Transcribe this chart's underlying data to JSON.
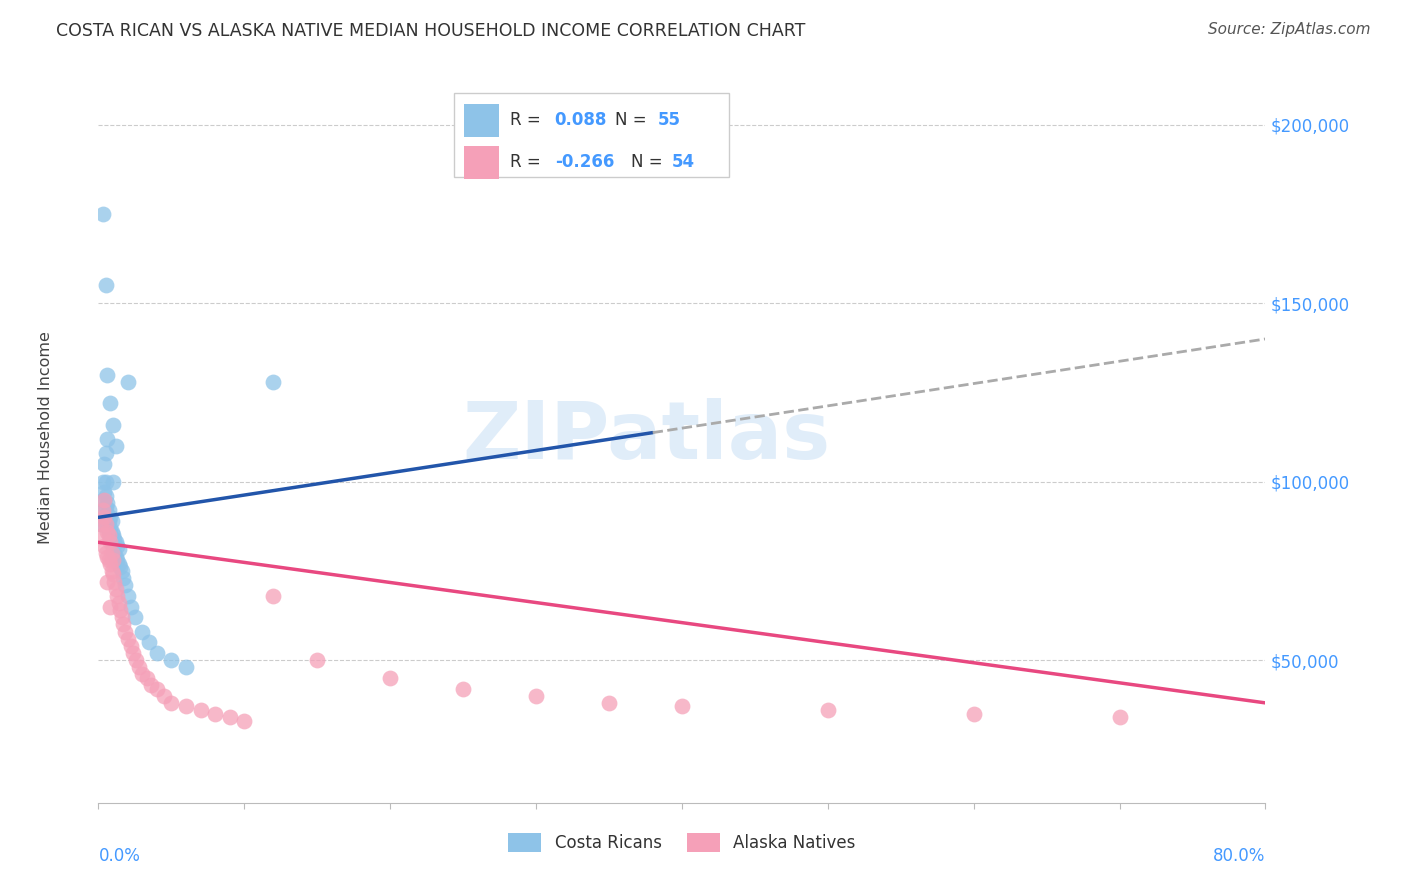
{
  "title": "COSTA RICAN VS ALASKA NATIVE MEDIAN HOUSEHOLD INCOME CORRELATION CHART",
  "source": "Source: ZipAtlas.com",
  "ylabel": "Median Household Income",
  "series1_label": "Costa Ricans",
  "series2_label": "Alaska Natives",
  "series1_color": "#8ec3e8",
  "series2_color": "#f5a0b8",
  "line1_color": "#2255aa",
  "line1_dash_color": "#aaaaaa",
  "line2_color": "#e84880",
  "watermark": "ZIPatlas",
  "background_color": "#ffffff",
  "xlim": [
    0.0,
    0.8
  ],
  "ylim": [
    10000,
    215000
  ],
  "ytick_values": [
    50000,
    100000,
    150000,
    200000
  ],
  "ytick_labels": [
    "$50,000",
    "$100,000",
    "$150,000",
    "$200,000"
  ],
  "legend_r1": "R =  0.088",
  "legend_n1": "N = 55",
  "legend_r2": "R = -0.266",
  "legend_n2": "N = 54",
  "cr_x": [
    0.002,
    0.003,
    0.003,
    0.004,
    0.004,
    0.004,
    0.005,
    0.005,
    0.005,
    0.005,
    0.005,
    0.006,
    0.006,
    0.006,
    0.006,
    0.007,
    0.007,
    0.007,
    0.008,
    0.008,
    0.008,
    0.009,
    0.009,
    0.009,
    0.01,
    0.01,
    0.01,
    0.011,
    0.011,
    0.012,
    0.012,
    0.013,
    0.013,
    0.014,
    0.014,
    0.015,
    0.016,
    0.017,
    0.018,
    0.02,
    0.022,
    0.025,
    0.03,
    0.035,
    0.04,
    0.05,
    0.06,
    0.003,
    0.005,
    0.006,
    0.008,
    0.01,
    0.012,
    0.02,
    0.12
  ],
  "cr_y": [
    88000,
    95000,
    100000,
    92000,
    97000,
    105000,
    90000,
    93000,
    96000,
    100000,
    108000,
    88000,
    91000,
    94000,
    112000,
    86000,
    89000,
    92000,
    84000,
    87000,
    90000,
    83000,
    86000,
    89000,
    82000,
    85000,
    100000,
    80000,
    84000,
    79000,
    83000,
    78000,
    82000,
    77000,
    81000,
    76000,
    75000,
    73000,
    71000,
    68000,
    65000,
    62000,
    58000,
    55000,
    52000,
    50000,
    48000,
    175000,
    155000,
    130000,
    122000,
    116000,
    110000,
    128000,
    128000
  ],
  "an_x": [
    0.002,
    0.003,
    0.003,
    0.004,
    0.004,
    0.005,
    0.005,
    0.006,
    0.006,
    0.007,
    0.007,
    0.008,
    0.008,
    0.009,
    0.009,
    0.01,
    0.01,
    0.011,
    0.012,
    0.013,
    0.014,
    0.015,
    0.016,
    0.017,
    0.018,
    0.02,
    0.022,
    0.024,
    0.026,
    0.028,
    0.03,
    0.033,
    0.036,
    0.04,
    0.045,
    0.05,
    0.06,
    0.07,
    0.08,
    0.09,
    0.1,
    0.12,
    0.15,
    0.2,
    0.25,
    0.3,
    0.35,
    0.4,
    0.5,
    0.6,
    0.004,
    0.006,
    0.008,
    0.7
  ],
  "an_y": [
    88000,
    85000,
    92000,
    82000,
    90000,
    80000,
    88000,
    79000,
    86000,
    78000,
    85000,
    77000,
    83000,
    75000,
    80000,
    74000,
    78000,
    72000,
    70000,
    68000,
    66000,
    64000,
    62000,
    60000,
    58000,
    56000,
    54000,
    52000,
    50000,
    48000,
    46000,
    45000,
    43000,
    42000,
    40000,
    38000,
    37000,
    36000,
    35000,
    34000,
    33000,
    68000,
    50000,
    45000,
    42000,
    40000,
    38000,
    37000,
    36000,
    35000,
    95000,
    72000,
    65000,
    34000
  ]
}
